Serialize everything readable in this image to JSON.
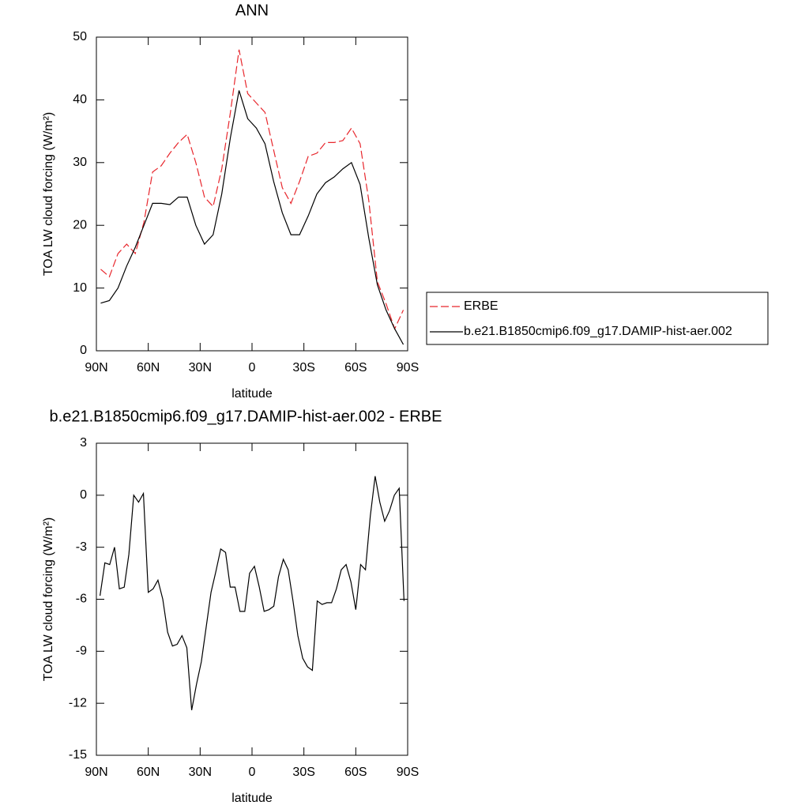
{
  "chart_data": [
    {
      "type": "line",
      "title": "ANN",
      "xlabel": "latitude",
      "ylabel": "TOA LW cloud forcing (W/m²)",
      "x": [
        87.5,
        82.5,
        77.5,
        72.5,
        67.5,
        62.5,
        57.5,
        52.5,
        47.5,
        42.5,
        37.5,
        32.5,
        27.5,
        22.5,
        17.5,
        12.5,
        7.5,
        2.5,
        -2.5,
        -7.5,
        -12.5,
        -17.5,
        -22.5,
        -27.5,
        -32.5,
        -37.5,
        -42.5,
        -47.5,
        -52.5,
        -57.5,
        -62.5,
        -67.5,
        -72.5,
        -77.5,
        -82.5,
        -87.5
      ],
      "series": [
        {
          "name": "ERBE",
          "color": "#e8262c",
          "dash": true,
          "values": [
            13,
            11.8,
            15.5,
            17,
            15.5,
            20.5,
            28.5,
            29.5,
            31.5,
            33.2,
            34.5,
            30,
            24.5,
            23,
            29,
            38,
            48,
            41,
            39.5,
            38,
            32,
            26,
            23.5,
            27,
            31,
            31.5,
            33.2,
            33.2,
            33.5,
            35.5,
            33,
            24,
            11,
            7.5,
            3.5,
            6.5
          ]
        },
        {
          "name": "b.e21.B1850cmip6.f09_g17.DAMIP-hist-aer.002",
          "color": "#000000",
          "dash": false,
          "values": [
            7.6,
            8,
            10,
            13.5,
            16.5,
            20,
            23.5,
            23.5,
            23.3,
            24.5,
            24.5,
            20,
            17,
            18.5,
            25,
            34,
            41.5,
            37,
            35.5,
            33,
            27,
            22,
            18.5,
            18.5,
            21.5,
            25,
            26.8,
            27.7,
            29,
            30,
            26.5,
            18,
            10.5,
            6.5,
            3.5,
            1
          ]
        }
      ],
      "xlim": [
        90,
        -90
      ],
      "xticks": [
        {
          "value": 90,
          "label": "90N"
        },
        {
          "value": 60,
          "label": "60N"
        },
        {
          "value": 30,
          "label": "30N"
        },
        0,
        {
          "value": -30,
          "label": "30S"
        },
        {
          "value": -60,
          "label": "60S"
        },
        {
          "value": -90,
          "label": "90S"
        }
      ],
      "ylim": [
        0,
        50
      ],
      "yticks": [
        0,
        10,
        20,
        30,
        40,
        50
      ],
      "legend": "outside right"
    },
    {
      "type": "line",
      "title": "b.e21.B1850cmip6.f09_g17.DAMIP-hist-aer.002 - ERBE",
      "xlabel": "latitude",
      "ylabel": "TOA LW cloud forcing (W/m²)",
      "x": [
        87.9,
        85.1,
        82.3,
        79.5,
        76.7,
        73.9,
        71.2,
        68.4,
        65.6,
        62.8,
        60.0,
        57.2,
        54.4,
        51.6,
        48.8,
        46.0,
        43.3,
        40.5,
        37.7,
        34.9,
        32.1,
        29.3,
        26.5,
        23.7,
        20.9,
        18.1,
        15.3,
        12.6,
        9.8,
        7.0,
        4.2,
        1.4,
        -1.4,
        -4.2,
        -7.0,
        -9.8,
        -12.6,
        -15.3,
        -18.1,
        -20.9,
        -23.7,
        -26.5,
        -29.3,
        -32.1,
        -34.9,
        -37.7,
        -40.5,
        -43.3,
        -46.0,
        -48.8,
        -51.6,
        -54.4,
        -57.2,
        -60.0,
        -62.8,
        -65.6,
        -68.4,
        -71.2,
        -73.9,
        -76.7,
        -79.5,
        -82.3,
        -85.1,
        -87.9
      ],
      "series": [
        {
          "color": "#000000",
          "dash": false,
          "values": [
            -5.8,
            -3.9,
            -4.0,
            -3.0,
            -5.4,
            -5.3,
            -3.4,
            0.0,
            -0.4,
            0.1,
            -5.6,
            -5.4,
            -4.9,
            -6.0,
            -7.9,
            -8.7,
            -8.6,
            -8.1,
            -8.8,
            -12.4,
            -10.9,
            -9.6,
            -7.6,
            -5.6,
            -4.4,
            -3.1,
            -3.3,
            -5.3,
            -5.3,
            -6.7,
            -6.7,
            -4.5,
            -4.1,
            -5.3,
            -6.7,
            -6.6,
            -6.4,
            -4.7,
            -3.7,
            -4.3,
            -6.1,
            -8.1,
            -9.4,
            -9.9,
            -10.1,
            -6.1,
            -6.3,
            -6.2,
            -6.2,
            -5.4,
            -4.3,
            -4.0,
            -5.0,
            -6.6,
            -4.0,
            -4.3,
            -1.2,
            1.1,
            -0.4,
            -1.5,
            -0.9,
            0.0,
            0.4,
            -6.1
          ]
        }
      ],
      "xlim": [
        90,
        -90
      ],
      "xticks": [
        {
          "value": 90,
          "label": "90N"
        },
        {
          "value": 60,
          "label": "60N"
        },
        {
          "value": 30,
          "label": "30N"
        },
        0,
        {
          "value": -30,
          "label": "30S"
        },
        {
          "value": -60,
          "label": "60S"
        },
        {
          "value": -90,
          "label": "90S"
        }
      ],
      "ylim": [
        -15,
        3
      ],
      "yticks": [
        -15,
        -12,
        -9,
        -6,
        -3,
        0,
        3
      ]
    }
  ]
}
